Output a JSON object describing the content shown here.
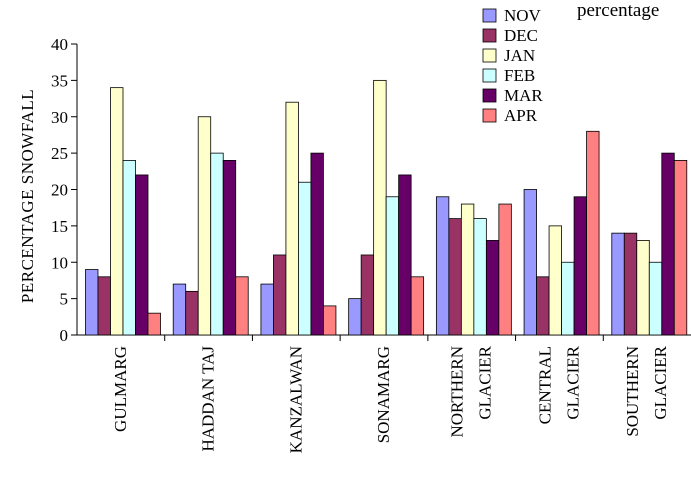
{
  "chart_data": {
    "type": "bar",
    "title": "",
    "top_text": "percentage",
    "ylabel": "PERCENTAGE SNOWFALL",
    "ylim": [
      0,
      40
    ],
    "yticks": [
      0,
      5,
      10,
      15,
      20,
      25,
      30,
      35,
      40
    ],
    "categories": [
      [
        "GULMARG"
      ],
      [
        "HADDAN TAJ"
      ],
      [
        "KANZALWAN"
      ],
      [
        "SONAMARG"
      ],
      [
        "NORTHERN",
        "GLACIER"
      ],
      [
        "CENTRAL",
        "GLACIER"
      ],
      [
        "SOUTHERN",
        "GLACIER"
      ]
    ],
    "legend_position": "top-right",
    "series": [
      {
        "name": "NOV",
        "color": "#9999ff",
        "values": [
          9,
          7,
          7,
          5,
          19,
          20,
          14
        ]
      },
      {
        "name": "DEC",
        "color": "#993366",
        "values": [
          8,
          6,
          11,
          11,
          16,
          8,
          14
        ]
      },
      {
        "name": "JAN",
        "color": "#ffffcc",
        "values": [
          34,
          30,
          32,
          35,
          18,
          15,
          13
        ]
      },
      {
        "name": "FEB",
        "color": "#ccffff",
        "values": [
          24,
          25,
          21,
          19,
          16,
          10,
          10
        ]
      },
      {
        "name": "MAR",
        "color": "#660066",
        "values": [
          22,
          24,
          25,
          22,
          13,
          19,
          25
        ]
      },
      {
        "name": "APR",
        "color": "#ff8080",
        "values": [
          3,
          8,
          4,
          8,
          18,
          28,
          24
        ]
      }
    ]
  }
}
